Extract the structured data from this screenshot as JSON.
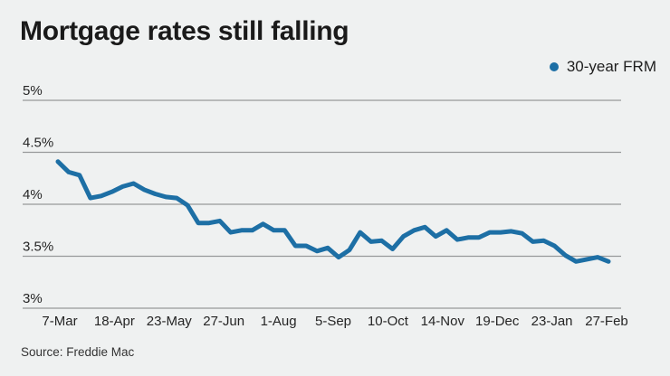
{
  "title": "Mortgage rates still falling",
  "legend": {
    "label": "30-year FRM",
    "dot_color": "#1d6fa5"
  },
  "source": "Source: Freddie Mac",
  "colors": {
    "background": "#eff1f1",
    "line": "#1d6fa5",
    "grid": "#97999a",
    "title_text": "#1a1a1a",
    "axis_text": "#252525"
  },
  "chart_data": {
    "type": "line",
    "title": "Mortgage rates still falling",
    "source": "Source: Freddie Mac",
    "legend_position": "top-right",
    "grid": "horizontal-only",
    "ylim": [
      3.0,
      5.0
    ],
    "y_tick_labels": [
      "5%",
      "4.5%",
      "4%",
      "3.5%",
      "3%"
    ],
    "x_tick_labels": [
      "7-Mar",
      "18-Apr",
      "23-May",
      "27-Jun",
      "1-Aug",
      "5-Sep",
      "10-Oct",
      "14-Nov",
      "19-Dec",
      "23-Jan",
      "27-Feb"
    ],
    "series": [
      {
        "name": "30-year FRM",
        "color": "#1d6fa5",
        "x": [
          "7-Mar",
          "14-Mar",
          "21-Mar",
          "28-Mar",
          "4-Apr",
          "11-Apr",
          "18-Apr",
          "25-Apr",
          "2-May",
          "9-May",
          "16-May",
          "23-May",
          "30-May",
          "6-Jun",
          "13-Jun",
          "20-Jun",
          "27-Jun",
          "4-Jul",
          "11-Jul",
          "18-Jul",
          "25-Jul",
          "1-Aug",
          "8-Aug",
          "15-Aug",
          "22-Aug",
          "29-Aug",
          "5-Sep",
          "12-Sep",
          "19-Sep",
          "26-Sep",
          "3-Oct",
          "10-Oct",
          "17-Oct",
          "24-Oct",
          "31-Oct",
          "7-Nov",
          "14-Nov",
          "21-Nov",
          "28-Nov",
          "5-Dec",
          "12-Dec",
          "19-Dec",
          "26-Dec",
          "2-Jan",
          "9-Jan",
          "16-Jan",
          "23-Jan",
          "30-Jan",
          "6-Feb",
          "13-Feb",
          "20-Feb",
          "27-Feb"
        ],
        "values": [
          4.41,
          4.31,
          4.28,
          4.06,
          4.08,
          4.12,
          4.17,
          4.2,
          4.14,
          4.1,
          4.07,
          4.06,
          3.99,
          3.82,
          3.82,
          3.84,
          3.73,
          3.75,
          3.75,
          3.81,
          3.75,
          3.75,
          3.6,
          3.6,
          3.55,
          3.58,
          3.49,
          3.56,
          3.73,
          3.64,
          3.65,
          3.57,
          3.69,
          3.75,
          3.78,
          3.69,
          3.75,
          3.66,
          3.68,
          3.68,
          3.73,
          3.73,
          3.74,
          3.72,
          3.64,
          3.65,
          3.6,
          3.51,
          3.45,
          3.47,
          3.49,
          3.45
        ]
      }
    ]
  }
}
